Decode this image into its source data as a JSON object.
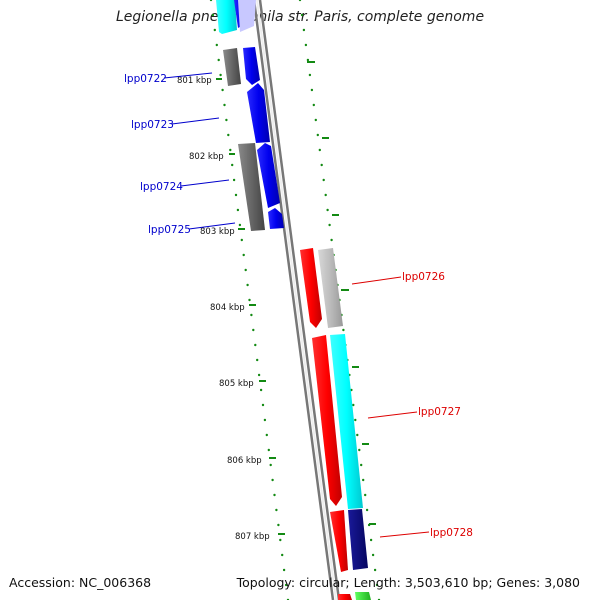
{
  "title": "Legionella pneumophila str. Paris, complete genome",
  "footer": {
    "accession": "Accession: NC_006368",
    "summary": "Topology: circular; Length: 3,503,610 bp; Genes: 3,080"
  },
  "ruler": {
    "ticks": [
      "801 kbp",
      "802 kbp",
      "803 kbp",
      "804 kbp",
      "805 kbp",
      "806 kbp",
      "807 kbp"
    ]
  },
  "genes": {
    "reverse": [
      "lpp0722",
      "lpp0723",
      "lpp0724",
      "lpp0725"
    ],
    "forward": [
      "lpp0726",
      "lpp0727",
      "lpp0728"
    ]
  },
  "colors": {
    "reverse_label": "#0000cc",
    "forward_label": "#dd0000",
    "cds_blue": "#0a0af0",
    "cds_red": "#ff0000",
    "cds_cyan": "#00ffff",
    "cds_navy": "#08087a",
    "gray_dark": "#666666",
    "gray_light": "#bbbbbb",
    "tick_green": "#138a13",
    "backbone": "#777777"
  }
}
